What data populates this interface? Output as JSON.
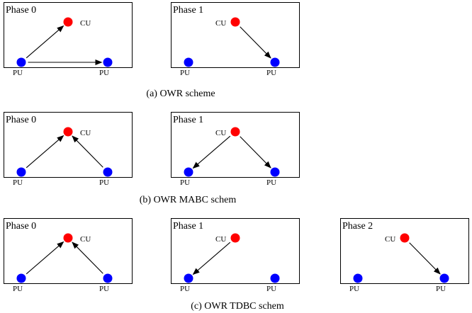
{
  "colors": {
    "cu": "#ff0000",
    "pu": "#0000ff",
    "frame": "#000000",
    "arrow": "#000000"
  },
  "node_labels": {
    "cu": "CU",
    "pu": "PU"
  },
  "rows": [
    {
      "caption": "(a)   OWR scheme",
      "panels": [
        {
          "title": "Phase 0",
          "arrows": [
            [
              "pu1",
              "cu"
            ],
            [
              "pu1",
              "pu2"
            ]
          ]
        },
        {
          "title": "Phase 1",
          "arrows": [
            [
              "cu",
              "pu2"
            ]
          ]
        }
      ]
    },
    {
      "caption": "(b)   OWR MABC schem",
      "panels": [
        {
          "title": "Phase 0",
          "arrows": [
            [
              "pu1",
              "cu"
            ],
            [
              "pu2",
              "cu"
            ]
          ]
        },
        {
          "title": "Phase 1",
          "arrows": [
            [
              "cu",
              "pu1"
            ],
            [
              "cu",
              "pu2"
            ]
          ]
        }
      ]
    },
    {
      "caption": "(c)   OWR TDBC schem",
      "panels": [
        {
          "title": "Phase 0",
          "arrows": [
            [
              "pu1",
              "cu"
            ],
            [
              "pu2",
              "cu"
            ]
          ]
        },
        {
          "title": "Phase 1",
          "arrows": [
            [
              "cu",
              "pu1"
            ]
          ]
        },
        {
          "title": "Phase 2",
          "arrows": [
            [
              "cu",
              "pu2"
            ]
          ]
        }
      ]
    }
  ]
}
